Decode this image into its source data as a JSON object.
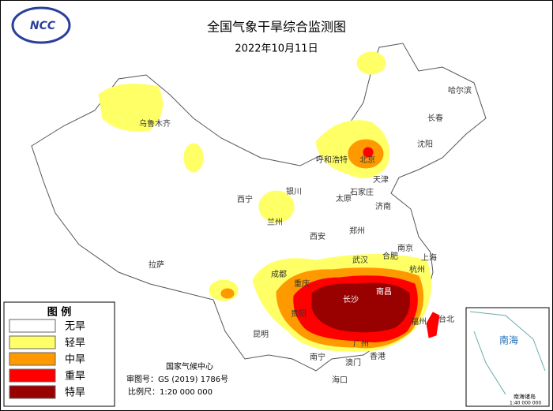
{
  "header": {
    "logo": "NCC",
    "title": "全国气象干旱综合监测图",
    "date": "2022年10月11日"
  },
  "legend": {
    "title": "图 例",
    "items": [
      {
        "label": "无旱",
        "color": "#ffffff"
      },
      {
        "label": "轻旱",
        "color": "#ffff66"
      },
      {
        "label": "中旱",
        "color": "#ff9900"
      },
      {
        "label": "重旱",
        "color": "#ff0000"
      },
      {
        "label": "特旱",
        "color": "#990000"
      }
    ]
  },
  "cities": [
    "哈尔滨",
    "长春",
    "沈阳",
    "呼和浩特",
    "北京",
    "天津",
    "石家庄",
    "太原",
    "济南",
    "郑州",
    "西安",
    "兰州",
    "西宁",
    "银川",
    "乌鲁木齐",
    "拉萨",
    "成都",
    "重庆",
    "贵阳",
    "昆明",
    "南宁",
    "长沙",
    "南昌",
    "武汉",
    "合肥",
    "南京",
    "上海",
    "杭州",
    "福州",
    "台北",
    "广州",
    "香港",
    "澳门",
    "海口"
  ],
  "footer": {
    "agency": "国家气候中心",
    "approval": "审图号：GS (2019) 1786号",
    "scale": "比例尺：1:20 000 000"
  },
  "inset": {
    "sea": "南海",
    "islands": "南海诸岛",
    "scale": "1:40 000 000"
  }
}
